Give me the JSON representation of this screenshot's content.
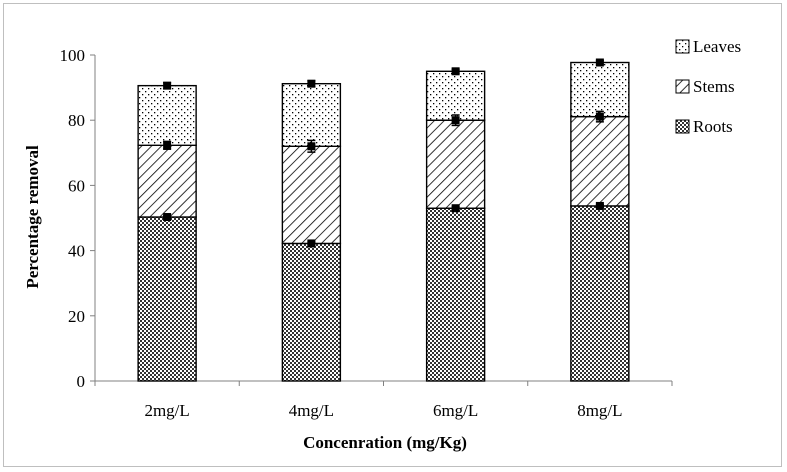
{
  "chart_data": {
    "type": "bar",
    "stacked": true,
    "categories": [
      "2mg/L",
      "4mg/L",
      "6mg/L",
      "8mg/L"
    ],
    "series": [
      {
        "name": "Roots",
        "values": [
          50.3,
          42.2,
          53.0,
          53.7
        ],
        "errors": [
          0.4,
          0.4,
          0.4,
          0.4
        ],
        "pattern": "crosshatch"
      },
      {
        "name": "Stems",
        "values": [
          22.0,
          29.8,
          27.0,
          27.4
        ],
        "errors": [
          1.2,
          1.8,
          1.6,
          1.6
        ],
        "pattern": "diagonal"
      },
      {
        "name": "Leaves",
        "values": [
          18.3,
          19.2,
          15.0,
          16.6
        ],
        "errors": [
          0.9,
          0.9,
          0.6,
          0.6
        ],
        "pattern": "dots"
      }
    ],
    "xlabel": "Concenration (mg/Kg)",
    "ylabel": "Percentage removal",
    "ylim": [
      0,
      100
    ],
    "yticks": [
      0,
      20,
      40,
      60,
      80,
      100
    ],
    "grid": false,
    "legend_position": "top-right"
  }
}
